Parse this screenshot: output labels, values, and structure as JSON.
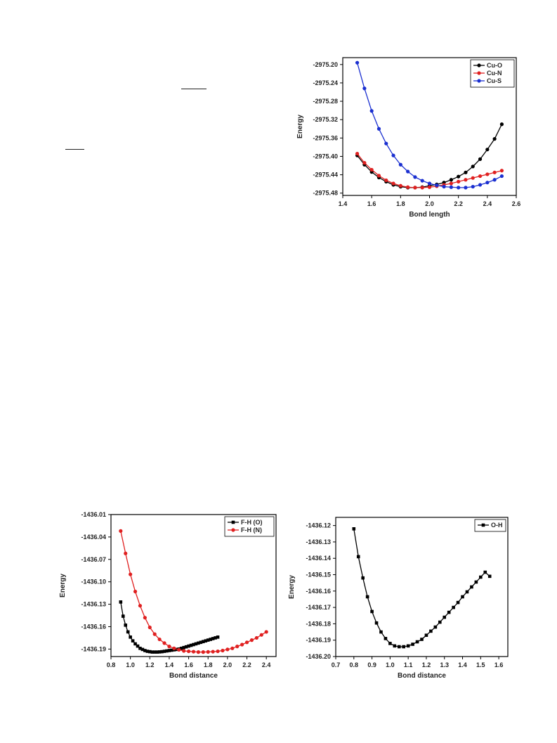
{
  "chart_data": [
    {
      "id": "cu",
      "type": "line",
      "title": "",
      "xlabel": "Bond length",
      "ylabel": "Energy",
      "xlim": [
        1.4,
        2.6
      ],
      "ylim": [
        -2975.485,
        -2975.185
      ],
      "xticks": [
        1.4,
        1.6,
        1.8,
        2.0,
        2.2,
        2.4,
        2.6
      ],
      "xtick_labels": [
        "1.4",
        "1.6",
        "1.8",
        "2.0",
        "2.2",
        "2.4",
        "2.6"
      ],
      "yticks": [
        -2975.2,
        -2975.24,
        -2975.28,
        -2975.32,
        -2975.36,
        -2975.4,
        -2975.44,
        -2975.48
      ],
      "ytick_labels": [
        "-2975.20",
        "-2975.24",
        "-2975.28",
        "-2975.32",
        "-2975.36",
        "-2975.40",
        "-2975.44",
        "-2975.48"
      ],
      "grid": false,
      "legend_position": "top-right",
      "series": [
        {
          "name": "Cu-O",
          "color": "#000000",
          "marker": "circle",
          "x": [
            1.5,
            1.55,
            1.6,
            1.65,
            1.7,
            1.75,
            1.8,
            1.85,
            1.9,
            1.95,
            2.0,
            2.05,
            2.1,
            2.15,
            2.2,
            2.25,
            2.3,
            2.35,
            2.4,
            2.45,
            2.5
          ],
          "y": [
            -2975.398,
            -2975.418,
            -2975.434,
            -2975.446,
            -2975.455,
            -2975.462,
            -2975.466,
            -2975.468,
            -2975.468,
            -2975.467,
            -2975.464,
            -2975.461,
            -2975.457,
            -2975.451,
            -2975.444,
            -2975.435,
            -2975.422,
            -2975.406,
            -2975.385,
            -2975.362,
            -2975.33
          ]
        },
        {
          "name": "Cu-N",
          "color": "#e02020",
          "marker": "circle",
          "x": [
            1.5,
            1.55,
            1.6,
            1.65,
            1.7,
            1.75,
            1.8,
            1.85,
            1.9,
            1.95,
            2.0,
            2.05,
            2.1,
            2.15,
            2.2,
            2.25,
            2.3,
            2.35,
            2.4,
            2.45,
            2.5
          ],
          "y": [
            -2975.394,
            -2975.414,
            -2975.429,
            -2975.442,
            -2975.452,
            -2975.459,
            -2975.464,
            -2975.467,
            -2975.468,
            -2975.468,
            -2975.467,
            -2975.465,
            -2975.462,
            -2975.459,
            -2975.455,
            -2975.451,
            -2975.447,
            -2975.443,
            -2975.439,
            -2975.435,
            -2975.431
          ]
        },
        {
          "name": "Cu-S",
          "color": "#1a2fd0",
          "marker": "circle",
          "x": [
            1.5,
            1.55,
            1.6,
            1.65,
            1.7,
            1.75,
            1.8,
            1.85,
            1.9,
            1.95,
            2.0,
            2.05,
            2.1,
            2.15,
            2.2,
            2.25,
            2.3,
            2.35,
            2.4,
            2.45,
            2.5
          ],
          "y": [
            -2975.196,
            -2975.252,
            -2975.301,
            -2975.34,
            -2975.372,
            -2975.398,
            -2975.418,
            -2975.433,
            -2975.445,
            -2975.453,
            -2975.459,
            -2975.463,
            -2975.466,
            -2975.467,
            -2975.468,
            -2975.468,
            -2975.466,
            -2975.462,
            -2975.457,
            -2975.451,
            -2975.443
          ]
        }
      ]
    },
    {
      "id": "fh",
      "type": "line",
      "title": "",
      "xlabel": "Bond distance",
      "ylabel": "Energy",
      "xlim": [
        0.8,
        2.5
      ],
      "ylim": [
        -1436.2,
        -1436.01
      ],
      "xticks": [
        0.8,
        1.0,
        1.2,
        1.4,
        1.6,
        1.8,
        2.0,
        2.2,
        2.4
      ],
      "xtick_labels": [
        "0.8",
        "1.0",
        "1.2",
        "1.4",
        "1.6",
        "1.8",
        "2.0",
        "2.2",
        "2.4"
      ],
      "yticks": [
        -1436.01,
        -1436.04,
        -1436.07,
        -1436.1,
        -1436.13,
        -1436.16,
        -1436.19
      ],
      "ytick_labels": [
        "-1436.01",
        "-1436.04",
        "-1436.07",
        "-1436.10",
        "-1436.13",
        "-1436.16",
        "-1436.19"
      ],
      "grid": false,
      "legend_position": "top-right",
      "series": [
        {
          "name": "F-H (O)",
          "color": "#000000",
          "marker": "square",
          "x": [
            0.9,
            0.925,
            0.95,
            0.975,
            1.0,
            1.025,
            1.05,
            1.075,
            1.1,
            1.125,
            1.15,
            1.175,
            1.2,
            1.225,
            1.25,
            1.275,
            1.3,
            1.325,
            1.35,
            1.375,
            1.4,
            1.425,
            1.45,
            1.475,
            1.5,
            1.525,
            1.55,
            1.575,
            1.6,
            1.625,
            1.65,
            1.675,
            1.7,
            1.725,
            1.75,
            1.775,
            1.8,
            1.825,
            1.85,
            1.875,
            1.9
          ],
          "y": [
            -1436.127,
            -1436.146,
            -1436.158,
            -1436.167,
            -1436.174,
            -1436.179,
            -1436.183,
            -1436.186,
            -1436.189,
            -1436.1905,
            -1436.192,
            -1436.193,
            -1436.1935,
            -1436.194,
            -1436.194,
            -1436.194,
            -1436.1938,
            -1436.1935,
            -1436.193,
            -1436.1925,
            -1436.192,
            -1436.1915,
            -1436.191,
            -1436.1905,
            -1436.19,
            -1436.189,
            -1436.188,
            -1436.187,
            -1436.186,
            -1436.185,
            -1436.184,
            -1436.183,
            -1436.182,
            -1436.181,
            -1436.18,
            -1436.179,
            -1436.178,
            -1436.177,
            -1436.176,
            -1436.175,
            -1436.174
          ]
        },
        {
          "name": "F-H (N)",
          "color": "#e02020",
          "marker": "circle",
          "x": [
            0.9,
            0.95,
            1.0,
            1.05,
            1.1,
            1.15,
            1.2,
            1.25,
            1.3,
            1.35,
            1.4,
            1.45,
            1.5,
            1.55,
            1.6,
            1.65,
            1.7,
            1.75,
            1.8,
            1.85,
            1.9,
            1.95,
            2.0,
            2.05,
            2.1,
            2.15,
            2.2,
            2.25,
            2.3,
            2.35,
            2.4
          ],
          "y": [
            -1436.032,
            -1436.062,
            -1436.09,
            -1436.113,
            -1436.132,
            -1436.148,
            -1436.161,
            -1436.17,
            -1436.177,
            -1436.182,
            -1436.1865,
            -1436.189,
            -1436.191,
            -1436.1925,
            -1436.193,
            -1436.1935,
            -1436.194,
            -1436.194,
            -1436.1938,
            -1436.1935,
            -1436.193,
            -1436.192,
            -1436.1905,
            -1436.189,
            -1436.1865,
            -1436.184,
            -1436.181,
            -1436.178,
            -1436.175,
            -1436.171,
            -1436.167
          ]
        }
      ]
    },
    {
      "id": "oh",
      "type": "line",
      "title": "",
      "xlabel": "Bond distance",
      "ylabel": "Energy",
      "xlim": [
        0.7,
        1.65
      ],
      "ylim": [
        -1436.2,
        -1436.115
      ],
      "xticks": [
        0.7,
        0.8,
        0.9,
        1.0,
        1.1,
        1.2,
        1.3,
        1.4,
        1.5,
        1.6
      ],
      "xtick_labels": [
        "0.7",
        "0.8",
        "0.9",
        "1.0",
        "1.1",
        "1.2",
        "1.3",
        "1.4",
        "1.5",
        "1.6"
      ],
      "yticks": [
        -1436.12,
        -1436.13,
        -1436.14,
        -1436.15,
        -1436.16,
        -1436.17,
        -1436.18,
        -1436.19,
        -1436.2
      ],
      "ytick_labels": [
        "-1436.12",
        "-1436.13",
        "-1436.14",
        "-1436.15",
        "-1436.16",
        "-1436.17",
        "-1436.18",
        "-1436.19",
        "-1436.20"
      ],
      "grid": false,
      "legend_position": "top-right",
      "series": [
        {
          "name": "O-H",
          "color": "#000000",
          "marker": "square",
          "x": [
            0.8,
            0.825,
            0.85,
            0.875,
            0.9,
            0.925,
            0.95,
            0.975,
            1.0,
            1.025,
            1.05,
            1.075,
            1.1,
            1.125,
            1.15,
            1.175,
            1.2,
            1.225,
            1.25,
            1.275,
            1.3,
            1.325,
            1.35,
            1.375,
            1.4,
            1.425,
            1.45,
            1.475,
            1.5,
            1.525,
            1.55
          ],
          "y": [
            -1436.122,
            -1436.139,
            -1436.152,
            -1436.1635,
            -1436.1725,
            -1436.1795,
            -1436.185,
            -1436.189,
            -1436.192,
            -1436.1935,
            -1436.194,
            -1436.194,
            -1436.1935,
            -1436.1925,
            -1436.191,
            -1436.1895,
            -1436.187,
            -1436.1845,
            -1436.182,
            -1436.179,
            -1436.176,
            -1436.173,
            -1436.17,
            -1436.167,
            -1436.1635,
            -1436.1605,
            -1436.1575,
            -1436.1545,
            -1436.1515,
            -1436.1485,
            -1436.151
          ]
        }
      ]
    }
  ]
}
